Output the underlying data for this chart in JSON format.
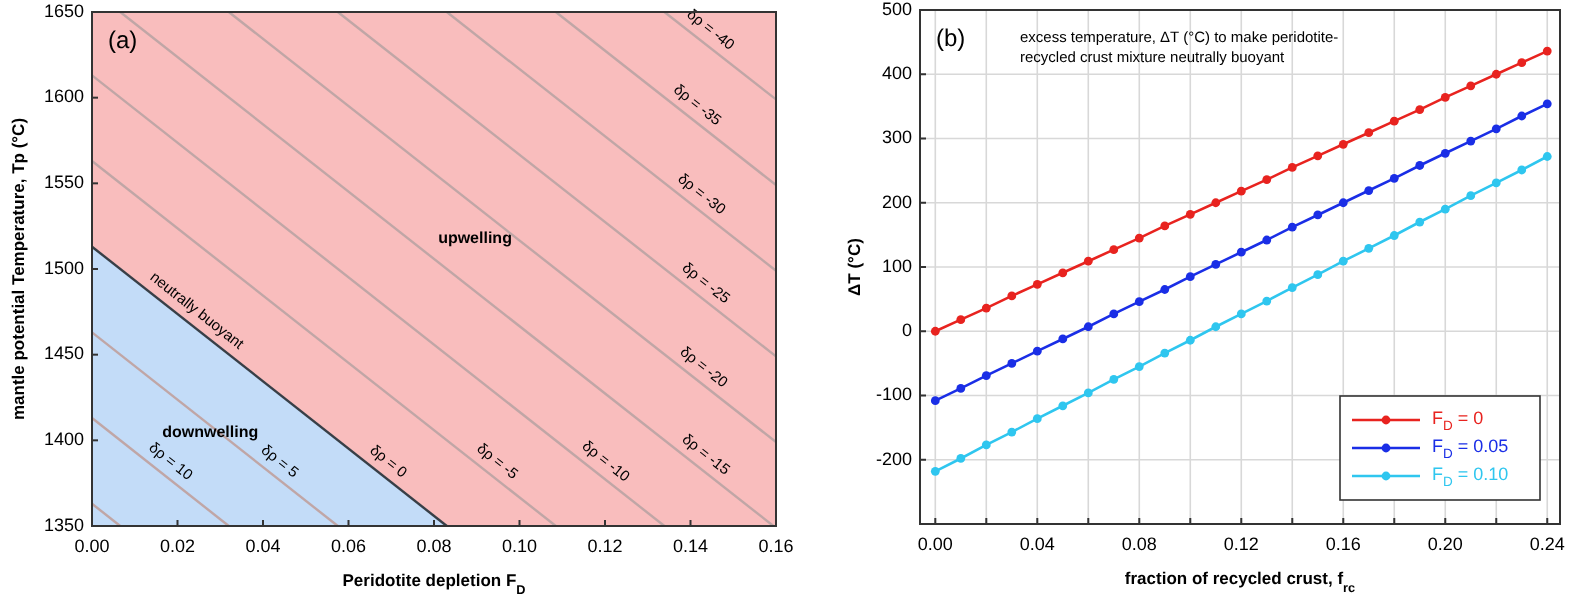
{
  "chart_data": [
    {
      "type": "line",
      "title": "(a)",
      "xlabel": "Peridotite depletion F$_{D}$",
      "ylabel": "mantle potential Temperature, Tp (°C)",
      "xlim": [
        0,
        0.16
      ],
      "ylim": [
        1350,
        1650
      ],
      "xticks": [
        {
          "value": 0,
          "label": "0.00"
        },
        {
          "value": 0.02,
          "label": "0.02"
        },
        {
          "value": 0.04,
          "label": "0.04"
        },
        {
          "value": 0.06,
          "label": "0.06"
        },
        {
          "value": 0.08,
          "label": "0.08"
        },
        {
          "value": 0.1,
          "label": "0.10"
        },
        {
          "value": 0.12,
          "label": "0.12"
        },
        {
          "value": 0.14,
          "label": "0.14"
        },
        {
          "value": 0.16,
          "label": "0.16"
        }
      ],
      "yticks": [
        1350,
        1400,
        1450,
        1500,
        1550,
        1600,
        1650
      ],
      "marker": "none",
      "legend": false,
      "series": [
        {
          "type": "area",
          "name": "downwelling",
          "color": "#c3dcf8",
          "x": [
            0,
            0.083
          ],
          "values": [
            1513,
            1350
          ]
        },
        {
          "type": "line",
          "color": "#c0a6a6",
          "x": [
            0,
            0.0066
          ],
          "values": [
            1363,
            1350
          ]
        },
        {
          "type": "line",
          "color": "#c0a6a6",
          "x": [
            0,
            0.032
          ],
          "values": [
            1413,
            1350
          ]
        },
        {
          "type": "line",
          "color": "#c0a6a6",
          "x": [
            0,
            0.0575
          ],
          "values": [
            1463,
            1350
          ]
        },
        {
          "type": "line",
          "color": "#c0a6a6",
          "x": [
            0,
            0.1085
          ],
          "values": [
            1563,
            1350
          ]
        },
        {
          "type": "line",
          "color": "#c0a6a6",
          "x": [
            0,
            0.1339
          ],
          "values": [
            1613,
            1350
          ]
        },
        {
          "type": "line",
          "color": "#c0a6a6",
          "x": [
            0.0066,
            0.1594
          ],
          "values": [
            1650,
            1350
          ]
        },
        {
          "type": "line",
          "color": "#c0a6a6",
          "x": [
            0.032,
            0.16
          ],
          "values": [
            1650,
            1399
          ]
        },
        {
          "type": "line",
          "color": "#c0a6a6",
          "x": [
            0.0575,
            0.16
          ],
          "values": [
            1650,
            1449
          ]
        },
        {
          "type": "line",
          "color": "#c0a6a6",
          "x": [
            0.083,
            0.16
          ],
          "values": [
            1650,
            1499
          ]
        },
        {
          "type": "line",
          "color": "#c0a6a6",
          "x": [
            0.1085,
            0.16
          ],
          "values": [
            1650,
            1549
          ]
        },
        {
          "type": "line",
          "color": "#c0a6a6",
          "x": [
            0.1339,
            0.16
          ],
          "values": [
            1650,
            1599
          ]
        }
      ],
      "bands": [
        {
          "axis": "x",
          "from": 0,
          "to": 0.16,
          "color": "#f9bdbd",
          "label": "upwelling"
        }
      ],
      "annotations": [
        {
          "text": "neutrally buoyant",
          "x": 0.0224,
          "y": 1469
        },
        {
          "text": "δρ = 10",
          "x": 0.0163,
          "y": 1381
        },
        {
          "text": "δρ = 5",
          "x": 0.0418,
          "y": 1381
        },
        {
          "text": "δρ = 0",
          "x": 0.0672,
          "y": 1381
        },
        {
          "text": "δρ = -5",
          "x": 0.0927,
          "y": 1381
        },
        {
          "text": "δρ = -10",
          "x": 0.1181,
          "y": 1381
        },
        {
          "text": "δρ = -15",
          "x": 0.1415,
          "y": 1385
        },
        {
          "text": "δρ = -20",
          "x": 0.141,
          "y": 1436
        },
        {
          "text": "δρ = -25",
          "x": 0.1415,
          "y": 1485
        },
        {
          "text": "δρ = -30",
          "x": 0.1405,
          "y": 1537
        },
        {
          "text": "δρ = -35",
          "x": 0.1395,
          "y": 1589
        },
        {
          "text": "δρ = -40",
          "x": 0.1426,
          "y": 1633
        }
      ]
    },
    {
      "type": "line",
      "title": "(b)",
      "xlabel": "fraction of recycled crust, f$_{rc}$",
      "ylabel": "ΔT (°C)",
      "xlim": [
        -0.006,
        0.245
      ],
      "ylim": [
        -300,
        500
      ],
      "xticks": [
        {
          "value": 0,
          "label": "0.00"
        },
        {
          "value": 0.02,
          "label": null
        },
        {
          "value": 0.04,
          "label": "0.04"
        },
        {
          "value": 0.06,
          "label": null
        },
        {
          "value": 0.08,
          "label": "0.08"
        },
        {
          "value": 0.1,
          "label": null
        },
        {
          "value": 0.12,
          "label": "0.12"
        },
        {
          "value": 0.14,
          "label": null
        },
        {
          "value": 0.16,
          "label": "0.16"
        },
        {
          "value": 0.18,
          "label": null
        },
        {
          "value": 0.2,
          "label": "0.20"
        },
        {
          "value": 0.22,
          "label": null
        },
        {
          "value": 0.24,
          "label": "0.24"
        }
      ],
      "yticks": [
        -200,
        -100,
        0,
        100,
        200,
        300,
        400,
        500
      ],
      "grid": true,
      "legend": "bottom right",
      "marker": "circle",
      "x": [
        0,
        0.01,
        0.02,
        0.03,
        0.04,
        0.05,
        0.06,
        0.07,
        0.08,
        0.09,
        0.1,
        0.11,
        0.12,
        0.13,
        0.14,
        0.15,
        0.16,
        0.17,
        0.18,
        0.19,
        0.2,
        0.21,
        0.22,
        0.23,
        0.24
      ],
      "series": [
        {
          "name": "F$_{D}$ = 0",
          "color": "#e8231f",
          "values": [
            0,
            18,
            36,
            55,
            73,
            91,
            109,
            127,
            145,
            164,
            182,
            200,
            218,
            236,
            255,
            273,
            291,
            309,
            327,
            345,
            364,
            382,
            400,
            418,
            436
          ]
        },
        {
          "name": "F$_{D}$ = 0.05",
          "color": "#1a2ee6",
          "values": [
            -108,
            -89,
            -69,
            -50,
            -31,
            -12,
            7,
            27,
            46,
            65,
            85,
            104,
            123,
            142,
            162,
            181,
            200,
            219,
            238,
            258,
            277,
            296,
            315,
            335,
            354
          ]
        },
        {
          "name": "F$_{D}$ = 0.10",
          "color": "#2fc6ef",
          "values": [
            -218,
            -198,
            -177,
            -157,
            -136,
            -116,
            -96,
            -75,
            -55,
            -34,
            -14,
            7,
            27,
            47,
            68,
            88,
            109,
            129,
            149,
            170,
            190,
            211,
            231,
            251,
            272
          ]
        }
      ],
      "annotations": [
        "excess temperature, ΔT (°C) to make peridotite-recycled crust mixture neutrally buoyant"
      ]
    }
  ]
}
